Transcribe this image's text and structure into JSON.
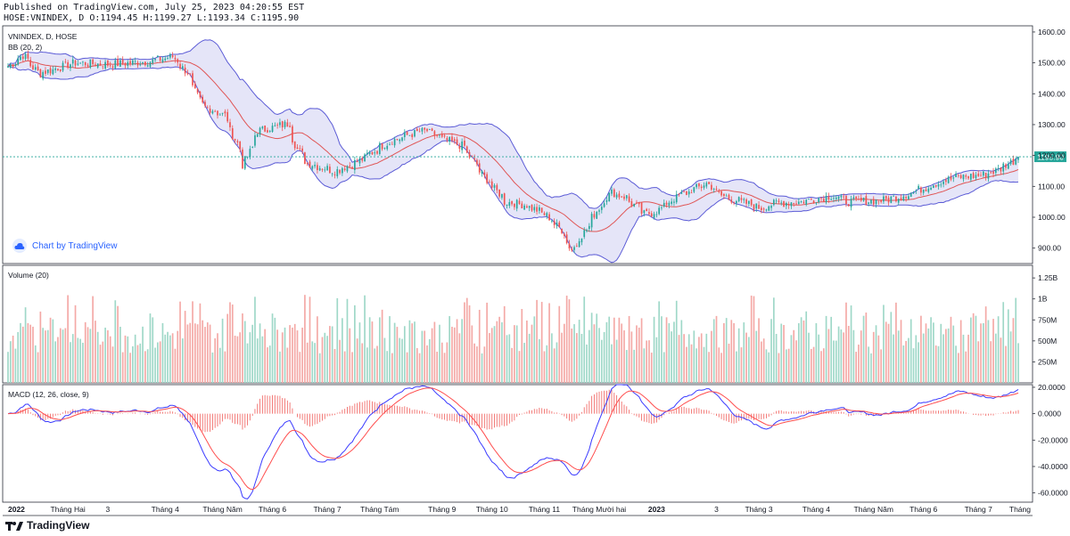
{
  "header": {
    "published": "Published on TradingView.com, July 25, 2023 04:20:55 EST",
    "ohlc": "HOSE:VNINDEX, D O:1194.45 H:1199.27 L:1193.34 C:1195.90"
  },
  "panes": {
    "price_title": "VNINDEX, D, HOSE",
    "bb_title": "BB (20, 2)",
    "volume_title": "Volume (20)",
    "macd_title": "MACD (12, 26, close, 9)"
  },
  "last_price_label": "1195.90",
  "badge_text": "Chart by TradingView",
  "footer_brand": "TradingView",
  "colors": {
    "up": "#26a69a",
    "down": "#ef5350",
    "bb_band": "#5b5bd6",
    "bb_fill": "#dcdcf5",
    "bb_basis": "#e05555",
    "macd_line": "#3b3bff",
    "signal_line": "#ff4d4d",
    "last_price": "#26a69a"
  },
  "chart_data": {
    "type": "candlestick",
    "symbol": "HOSE:VNINDEX",
    "interval": "D",
    "price_axis": {
      "ticks": [
        "1600.00",
        "1500.00",
        "1400.00",
        "1300.00",
        "1200.00",
        "1100.00",
        "1000.00",
        "900.00"
      ],
      "ylim": [
        850,
        1620
      ]
    },
    "volume_axis": {
      "ticks": [
        "1.25B",
        "1B",
        "750M",
        "500M",
        "250M"
      ],
      "ylim": [
        0,
        1400
      ]
    },
    "macd_axis": {
      "ticks": [
        "20.0000",
        "0.0000",
        "-20.0000",
        "-40.0000",
        "-60.0000"
      ],
      "ylim": [
        -67,
        22
      ]
    },
    "x_ticks": [
      "2022",
      "Tháng Hai",
      "3",
      "Tháng 4",
      "Tháng Năm",
      "Tháng 6",
      "Tháng 7",
      "Tháng Tám",
      "Tháng 9",
      "Tháng 10",
      "Tháng 11",
      "Tháng Mười hai",
      "2023",
      "3",
      "Tháng 3",
      "Tháng 4",
      "Tháng Năm",
      "Tháng 6",
      "Tháng 7",
      "Tháng"
    ],
    "close_anchors": [
      [
        "2022-01-04",
        1490
      ],
      [
        "2022-01-12",
        1525
      ],
      [
        "2022-01-21",
        1465
      ],
      [
        "2022-02-10",
        1500
      ],
      [
        "2022-03-01",
        1495
      ],
      [
        "2022-03-24",
        1505
      ],
      [
        "2022-04-06",
        1520
      ],
      [
        "2022-04-14",
        1470
      ],
      [
        "2022-04-22",
        1365
      ],
      [
        "2022-05-05",
        1330
      ],
      [
        "2022-05-12",
        1240
      ],
      [
        "2022-05-16",
        1170
      ],
      [
        "2022-05-24",
        1280
      ],
      [
        "2022-06-08",
        1300
      ],
      [
        "2022-06-10",
        1305
      ],
      [
        "2022-06-15",
        1220
      ],
      [
        "2022-06-21",
        1175
      ],
      [
        "2022-07-06",
        1150
      ],
      [
        "2022-07-19",
        1180
      ],
      [
        "2022-08-04",
        1240
      ],
      [
        "2022-08-18",
        1270
      ],
      [
        "2022-08-26",
        1280
      ],
      [
        "2022-09-06",
        1250
      ],
      [
        "2022-09-16",
        1230
      ],
      [
        "2022-09-28",
        1130
      ],
      [
        "2022-10-10",
        1050
      ],
      [
        "2022-10-21",
        1040
      ],
      [
        "2022-11-01",
        1010
      ],
      [
        "2022-11-10",
        960
      ],
      [
        "2022-11-16",
        895
      ],
      [
        "2022-11-24",
        960
      ],
      [
        "2022-12-01",
        1030
      ],
      [
        "2022-12-08",
        1080
      ],
      [
        "2022-12-16",
        1065
      ],
      [
        "2022-12-27",
        1010
      ],
      [
        "2023-01-03",
        1020
      ],
      [
        "2023-01-12",
        1060
      ],
      [
        "2023-01-31",
        1110
      ],
      [
        "2023-02-08",
        1070
      ],
      [
        "2023-02-22",
        1045
      ],
      [
        "2023-03-02",
        1030
      ],
      [
        "2023-03-10",
        1045
      ],
      [
        "2023-03-24",
        1050
      ],
      [
        "2023-04-11",
        1070
      ],
      [
        "2023-04-20",
        1050
      ],
      [
        "2023-05-10",
        1055
      ],
      [
        "2023-05-24",
        1075
      ],
      [
        "2023-06-08",
        1110
      ],
      [
        "2023-06-20",
        1130
      ],
      [
        "2023-07-03",
        1135
      ],
      [
        "2023-07-12",
        1150
      ],
      [
        "2023-07-25",
        1195.9
      ]
    ],
    "last_close": 1195.9,
    "indicators": [
      "Bollinger Bands (20, 2)",
      "Volume (20)",
      "MACD (12, 26, close, 9)"
    ]
  }
}
